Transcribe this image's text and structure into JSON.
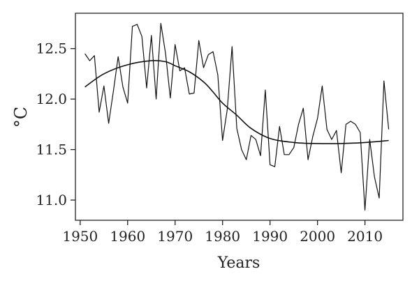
{
  "chart_data": {
    "type": "line",
    "xlabel": "Years",
    "ylabel": "°C",
    "xlim": [
      1949,
      2018
    ],
    "ylim": [
      10.8,
      12.85
    ],
    "xticks": [
      1950,
      1960,
      1970,
      1980,
      1990,
      2000,
      2010
    ],
    "yticks": [
      11.0,
      11.5,
      12.0,
      12.5
    ],
    "ytick_labels": [
      "11.0",
      "11.5",
      "12.0",
      "12.5"
    ],
    "xtick_labels": [
      "1950",
      "1960",
      "1970",
      "1980",
      "1990",
      "2000",
      "2010"
    ],
    "grid": false,
    "series": [
      {
        "kind": "annual",
        "x": [
          1951,
          1952,
          1953,
          1954,
          1955,
          1956,
          1957,
          1958,
          1959,
          1960,
          1961,
          1962,
          1963,
          1964,
          1965,
          1966,
          1967,
          1968,
          1969,
          1970,
          1971,
          1972,
          1973,
          1974,
          1975,
          1976,
          1977,
          1978,
          1979,
          1980,
          1981,
          1982,
          1983,
          1984,
          1985,
          1986,
          1987,
          1988,
          1989,
          1990,
          1991,
          1992,
          1993,
          1994,
          1995,
          1996,
          1997,
          1998,
          1999,
          2000,
          2001,
          2002,
          2003,
          2004,
          2005,
          2006,
          2007,
          2008,
          2009,
          2010,
          2011,
          2012,
          2013,
          2014,
          2015
        ],
        "values": [
          12.45,
          12.38,
          12.43,
          11.87,
          12.13,
          11.76,
          12.08,
          12.42,
          12.12,
          11.96,
          12.72,
          12.74,
          12.62,
          12.11,
          12.63,
          12.0,
          12.75,
          12.45,
          12.01,
          12.54,
          12.28,
          12.31,
          12.05,
          12.06,
          12.58,
          12.31,
          12.44,
          12.47,
          12.24,
          11.59,
          11.9,
          12.52,
          11.71,
          11.5,
          11.4,
          11.64,
          11.6,
          11.44,
          12.09,
          11.35,
          11.33,
          11.73,
          11.45,
          11.45,
          11.52,
          11.75,
          11.91,
          11.4,
          11.63,
          11.81,
          12.13,
          11.7,
          11.6,
          11.69,
          11.27,
          11.75,
          11.78,
          11.75,
          11.67,
          10.9,
          11.6,
          11.23,
          11.02,
          12.18,
          11.7
        ]
      },
      {
        "kind": "smoothed",
        "x": [
          1951,
          1955,
          1960,
          1965,
          1968,
          1970,
          1973,
          1976,
          1978,
          1980,
          1983,
          1986,
          1990,
          1995,
          2000,
          2005,
          2010,
          2015
        ],
        "values": [
          12.12,
          12.25,
          12.34,
          12.38,
          12.37,
          12.33,
          12.27,
          12.17,
          12.07,
          11.96,
          11.84,
          11.71,
          11.61,
          11.57,
          11.56,
          11.56,
          11.57,
          11.59
        ]
      }
    ]
  }
}
